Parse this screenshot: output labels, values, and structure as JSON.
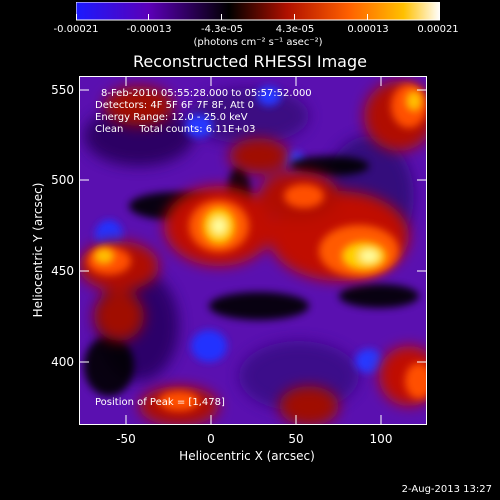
{
  "colorbar": {
    "ticks": [
      "-0.00021",
      "-0.00013",
      "-4.3e-05",
      "4.3e-05",
      "0.00013",
      "0.00021"
    ],
    "units": "(photons cm⁻² s⁻¹ asec⁻²)",
    "colors": [
      "#1a1aff",
      "#5b00b8",
      "#000000",
      "#b01000",
      "#ff6000",
      "#ffc000",
      "#ffffff"
    ]
  },
  "title": "Reconstructed RHESSI Image",
  "info": {
    "time_range": "8-Feb-2010 05:55:28.000 to 05:57:52.000",
    "detectors": "Detectors: 4F 5F 6F 7F 8F, Att 0",
    "energy": "Energy Range: 12.0 - 25.0 keV",
    "clean": "Clean     Total counts: 6.11E+03",
    "peak": "Position of Peak = [1,478]"
  },
  "axes": {
    "xlabel": "Heliocentric X (arcsec)",
    "ylabel": "Heliocentric Y (arcsec)",
    "xticks": [
      "-50",
      "0",
      "50",
      "100"
    ],
    "yticks": [
      "550",
      "500",
      "450",
      "400"
    ]
  },
  "timestamp": "2-Aug-2013 13:27"
}
